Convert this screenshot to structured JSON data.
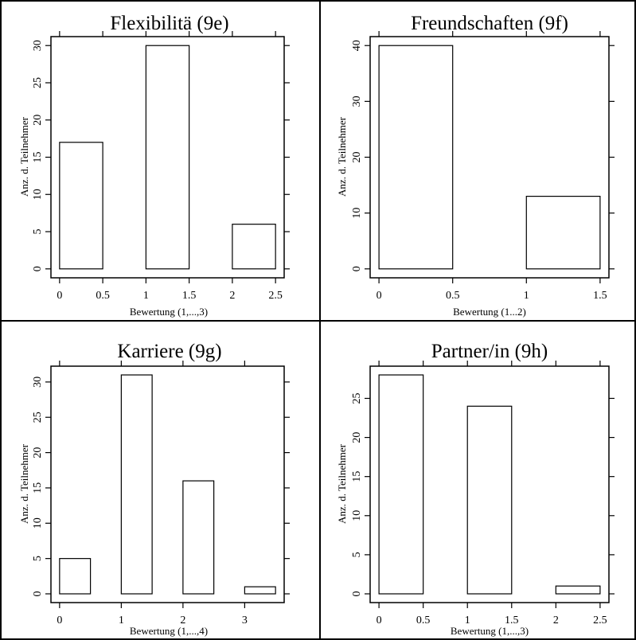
{
  "chart_data": [
    {
      "type": "bar",
      "title": "Flexibilitä (9e)",
      "xlabel": "Bewertung (1,...,3)",
      "ylabel": "Anz. d. Teilnehmer",
      "bars": [
        {
          "x0": 0,
          "x1": 0.5,
          "value": 17
        },
        {
          "x0": 1,
          "x1": 1.5,
          "value": 30
        },
        {
          "x0": 2,
          "x1": 2.5,
          "value": 6
        }
      ],
      "xticks": [
        0,
        0.5,
        1,
        1.5,
        2,
        2.5
      ],
      "xtick_labels": [
        "0",
        "0.5",
        "1",
        "1.5",
        "2",
        "2.5"
      ],
      "yticks": [
        0,
        5,
        10,
        15,
        20,
        25,
        30
      ],
      "ytick_labels": [
        "0",
        "5",
        "10",
        "15",
        "20",
        "25",
        "30"
      ],
      "xlim": [
        -0.1,
        2.6
      ],
      "ylim": [
        -1.2,
        31.2
      ],
      "grid": false
    },
    {
      "type": "bar",
      "title": "Freundschaften (9f)",
      "xlabel": "Bewertung (1...2)",
      "ylabel": "Anz. d. Teilnehmer",
      "bars": [
        {
          "x0": 0,
          "x1": 0.5,
          "value": 40
        },
        {
          "x0": 1,
          "x1": 1.5,
          "value": 13
        }
      ],
      "xticks": [
        0,
        0.5,
        1,
        1.5
      ],
      "xtick_labels": [
        "0",
        "0.5",
        "1",
        "1.5"
      ],
      "yticks": [
        0,
        10,
        20,
        30,
        40
      ],
      "ytick_labels": [
        "0",
        "10",
        "20",
        "30",
        "40"
      ],
      "xlim": [
        -0.06,
        1.56
      ],
      "ylim": [
        -1.6,
        41.6
      ],
      "grid": false
    },
    {
      "type": "bar",
      "title": "Karriere (9g)",
      "xlabel": "Bewertung (1,...,4)",
      "ylabel": "Anz. d. Teilnehmer",
      "bars": [
        {
          "x0": 0,
          "x1": 0.5,
          "value": 5
        },
        {
          "x0": 1,
          "x1": 1.5,
          "value": 31
        },
        {
          "x0": 2,
          "x1": 2.5,
          "value": 16
        },
        {
          "x0": 3,
          "x1": 3.5,
          "value": 1
        }
      ],
      "xticks": [
        0,
        1,
        2,
        3
      ],
      "xtick_labels": [
        "0",
        "1",
        "2",
        "3"
      ],
      "yticks": [
        0,
        5,
        10,
        15,
        20,
        25,
        30
      ],
      "ytick_labels": [
        "0",
        "5",
        "10",
        "15",
        "20",
        "25",
        "30"
      ],
      "xlim": [
        -0.14,
        3.64
      ],
      "ylim": [
        -1.24,
        32.24
      ],
      "grid": false
    },
    {
      "type": "bar",
      "title": "Partner/in (9h)",
      "xlabel": "Bewertung (1,...,3)",
      "ylabel": "Anz. d. Teilnehmer",
      "bars": [
        {
          "x0": 0,
          "x1": 0.5,
          "value": 28
        },
        {
          "x0": 1,
          "x1": 1.5,
          "value": 24
        },
        {
          "x0": 2,
          "x1": 2.5,
          "value": 1
        }
      ],
      "xticks": [
        0,
        0.5,
        1,
        1.5,
        2,
        2.5
      ],
      "xtick_labels": [
        "0",
        "0.5",
        "1",
        "1.5",
        "2",
        "2.5"
      ],
      "yticks": [
        0,
        5,
        10,
        15,
        20,
        25
      ],
      "ytick_labels": [
        "0",
        "5",
        "10",
        "15",
        "20",
        "25"
      ],
      "xlim": [
        -0.1,
        2.6
      ],
      "ylim": [
        -1.12,
        29.12
      ],
      "grid": false
    }
  ]
}
